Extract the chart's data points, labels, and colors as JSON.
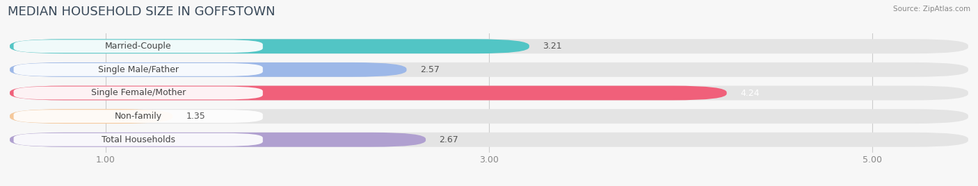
{
  "title": "MEDIAN HOUSEHOLD SIZE IN GOFFSTOWN",
  "source": "Source: ZipAtlas.com",
  "categories": [
    "Married-Couple",
    "Single Male/Father",
    "Single Female/Mother",
    "Non-family",
    "Total Households"
  ],
  "values": [
    3.21,
    2.57,
    4.24,
    1.35,
    2.67
  ],
  "bar_colors": [
    "#52c5c5",
    "#9db8e8",
    "#f0607a",
    "#f5c89a",
    "#b0a0d0"
  ],
  "value_colors": [
    "#555555",
    "#555555",
    "#ffffff",
    "#555555",
    "#555555"
  ],
  "xlim_data": [
    0.5,
    5.5
  ],
  "data_min": 0.5,
  "data_max": 5.5,
  "xticks": [
    1.0,
    3.0,
    5.0
  ],
  "xtick_labels": [
    "1.00",
    "3.00",
    "5.00"
  ],
  "background_color": "#f7f7f7",
  "bar_bg_color": "#e4e4e4",
  "title_fontsize": 13,
  "label_fontsize": 9,
  "value_fontsize": 9,
  "bar_height": 0.62,
  "bar_gap": 0.38
}
